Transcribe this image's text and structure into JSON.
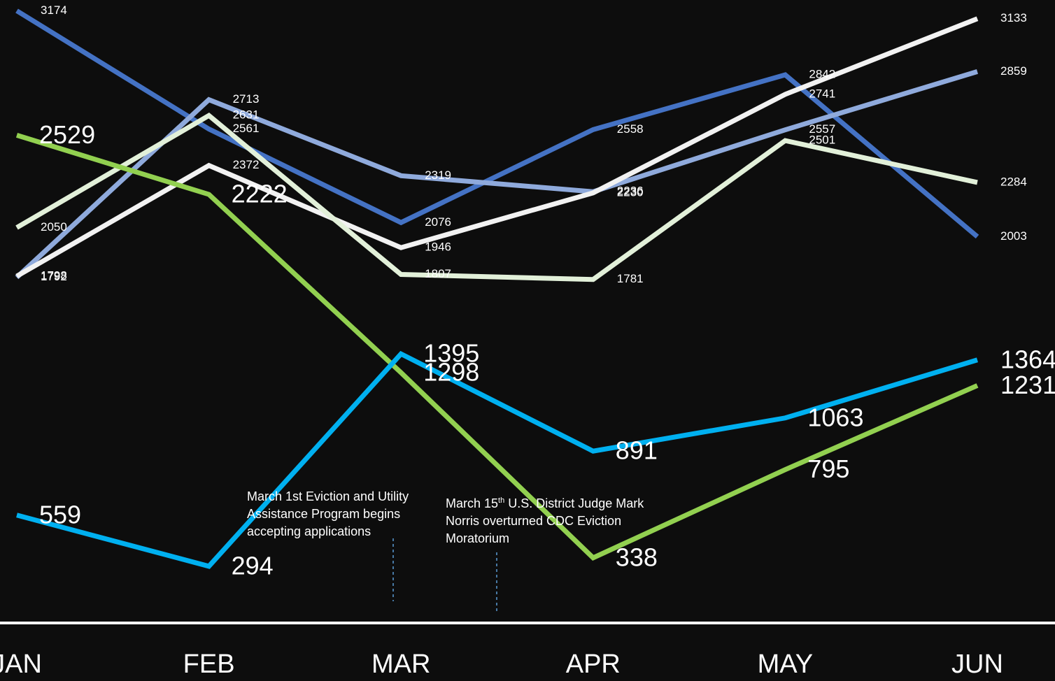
{
  "chart_data": {
    "type": "line",
    "categories": [
      "JAN",
      "FEB",
      "MAR",
      "APR",
      "MAY",
      "JUN"
    ],
    "ylim": [
      0,
      3230
    ],
    "series": [
      {
        "color": "#4472c4",
        "values": [
          3174,
          2561,
          2076,
          2558,
          2842,
          2003
        ]
      },
      {
        "color": "#8faadc",
        "values": [
          1792,
          2713,
          2319,
          2236,
          2557,
          2859
        ]
      },
      {
        "color": "#f2f2f2",
        "values": [
          1798,
          2372,
          1946,
          2230,
          2741,
          3133
        ]
      },
      {
        "color": "#e2f0d9",
        "values": [
          2050,
          2631,
          1807,
          1781,
          2501,
          2284
        ]
      },
      {
        "color": "#92d050",
        "values": [
          2529,
          2222,
          1298,
          338,
          795,
          1231
        ]
      },
      {
        "color": "#00b0f0",
        "values": [
          559,
          294,
          1395,
          891,
          1063,
          1364
        ]
      }
    ],
    "annotations": [
      {
        "text": "March 1st Eviction and Utility Assistance Program begins accepting applications"
      },
      {
        "text": "March 15",
        "sup": "th",
        "rest": " U.S. District Judge Mark Norris overturned CDC Eviction Moratorium"
      }
    ]
  }
}
